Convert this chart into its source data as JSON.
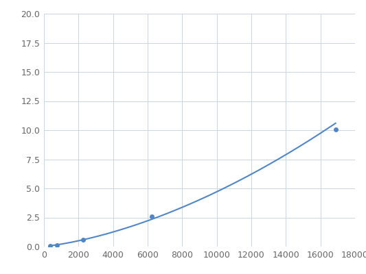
{
  "data_points_x": [
    375,
    750,
    2250,
    6250,
    16875
  ],
  "data_points_y": [
    0.08,
    0.13,
    0.6,
    2.57,
    10.08
  ],
  "line_color": "#4e86c8",
  "marker_color": "#4e86c8",
  "background_color": "#ffffff",
  "grid_color": "#c8d4e0",
  "xlim": [
    0,
    18000
  ],
  "ylim": [
    0,
    20
  ],
  "xticks": [
    0,
    2000,
    4000,
    6000,
    8000,
    10000,
    12000,
    14000,
    16000,
    18000
  ],
  "yticks": [
    0.0,
    2.5,
    5.0,
    7.5,
    10.0,
    12.5,
    15.0,
    17.5,
    20.0
  ],
  "tick_label_color": "#666666",
  "tick_fontsize": 9,
  "marker_size": 4,
  "line_width": 1.5
}
